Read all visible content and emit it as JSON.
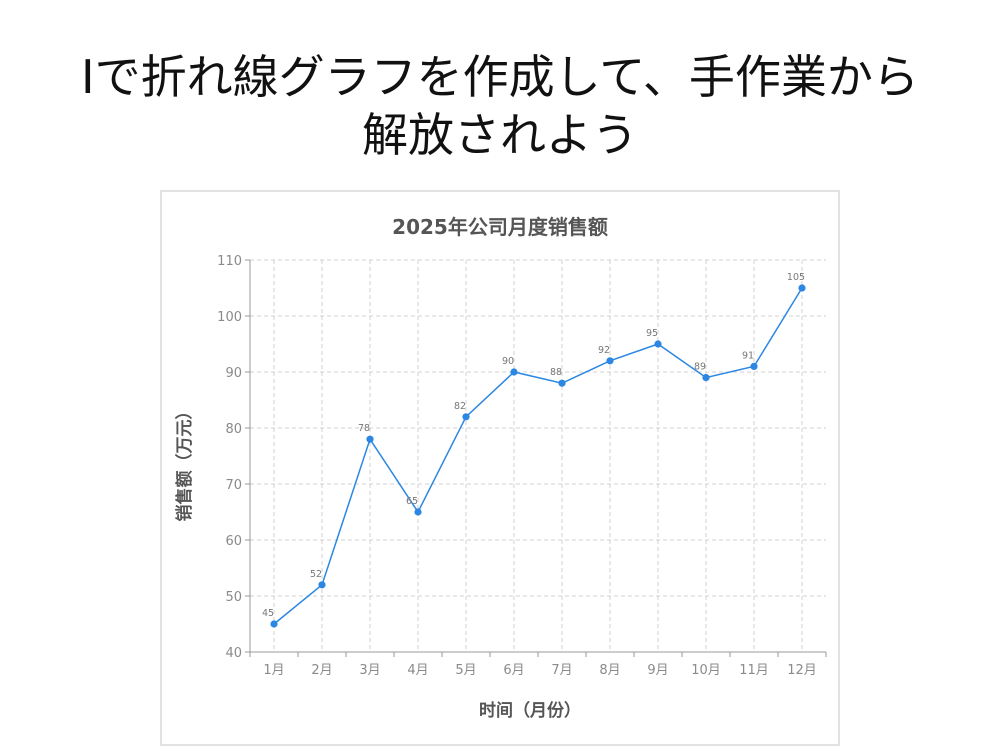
{
  "slide": {
    "title_line1": "Iで折れ線グラフを作成して、手作業から",
    "title_line2": "解放されよう"
  },
  "chart_data": {
    "type": "line",
    "title": "2025年公司月度销售额",
    "xlabel": "时间（月份）",
    "ylabel": "销售额（万元）",
    "categories": [
      "1月",
      "2月",
      "3月",
      "4月",
      "5月",
      "6月",
      "7月",
      "8月",
      "9月",
      "10月",
      "11月",
      "12月"
    ],
    "series": [
      {
        "values": [
          45,
          52,
          78,
          65,
          82,
          90,
          88,
          92,
          95,
          89,
          91,
          105
        ]
      }
    ],
    "ylim": [
      40,
      110
    ],
    "yticks": [
      40,
      50,
      60,
      70,
      80,
      90,
      100,
      110
    ],
    "grid": true,
    "data_labels": true,
    "colors": {
      "series": "#2b87e3"
    }
  }
}
